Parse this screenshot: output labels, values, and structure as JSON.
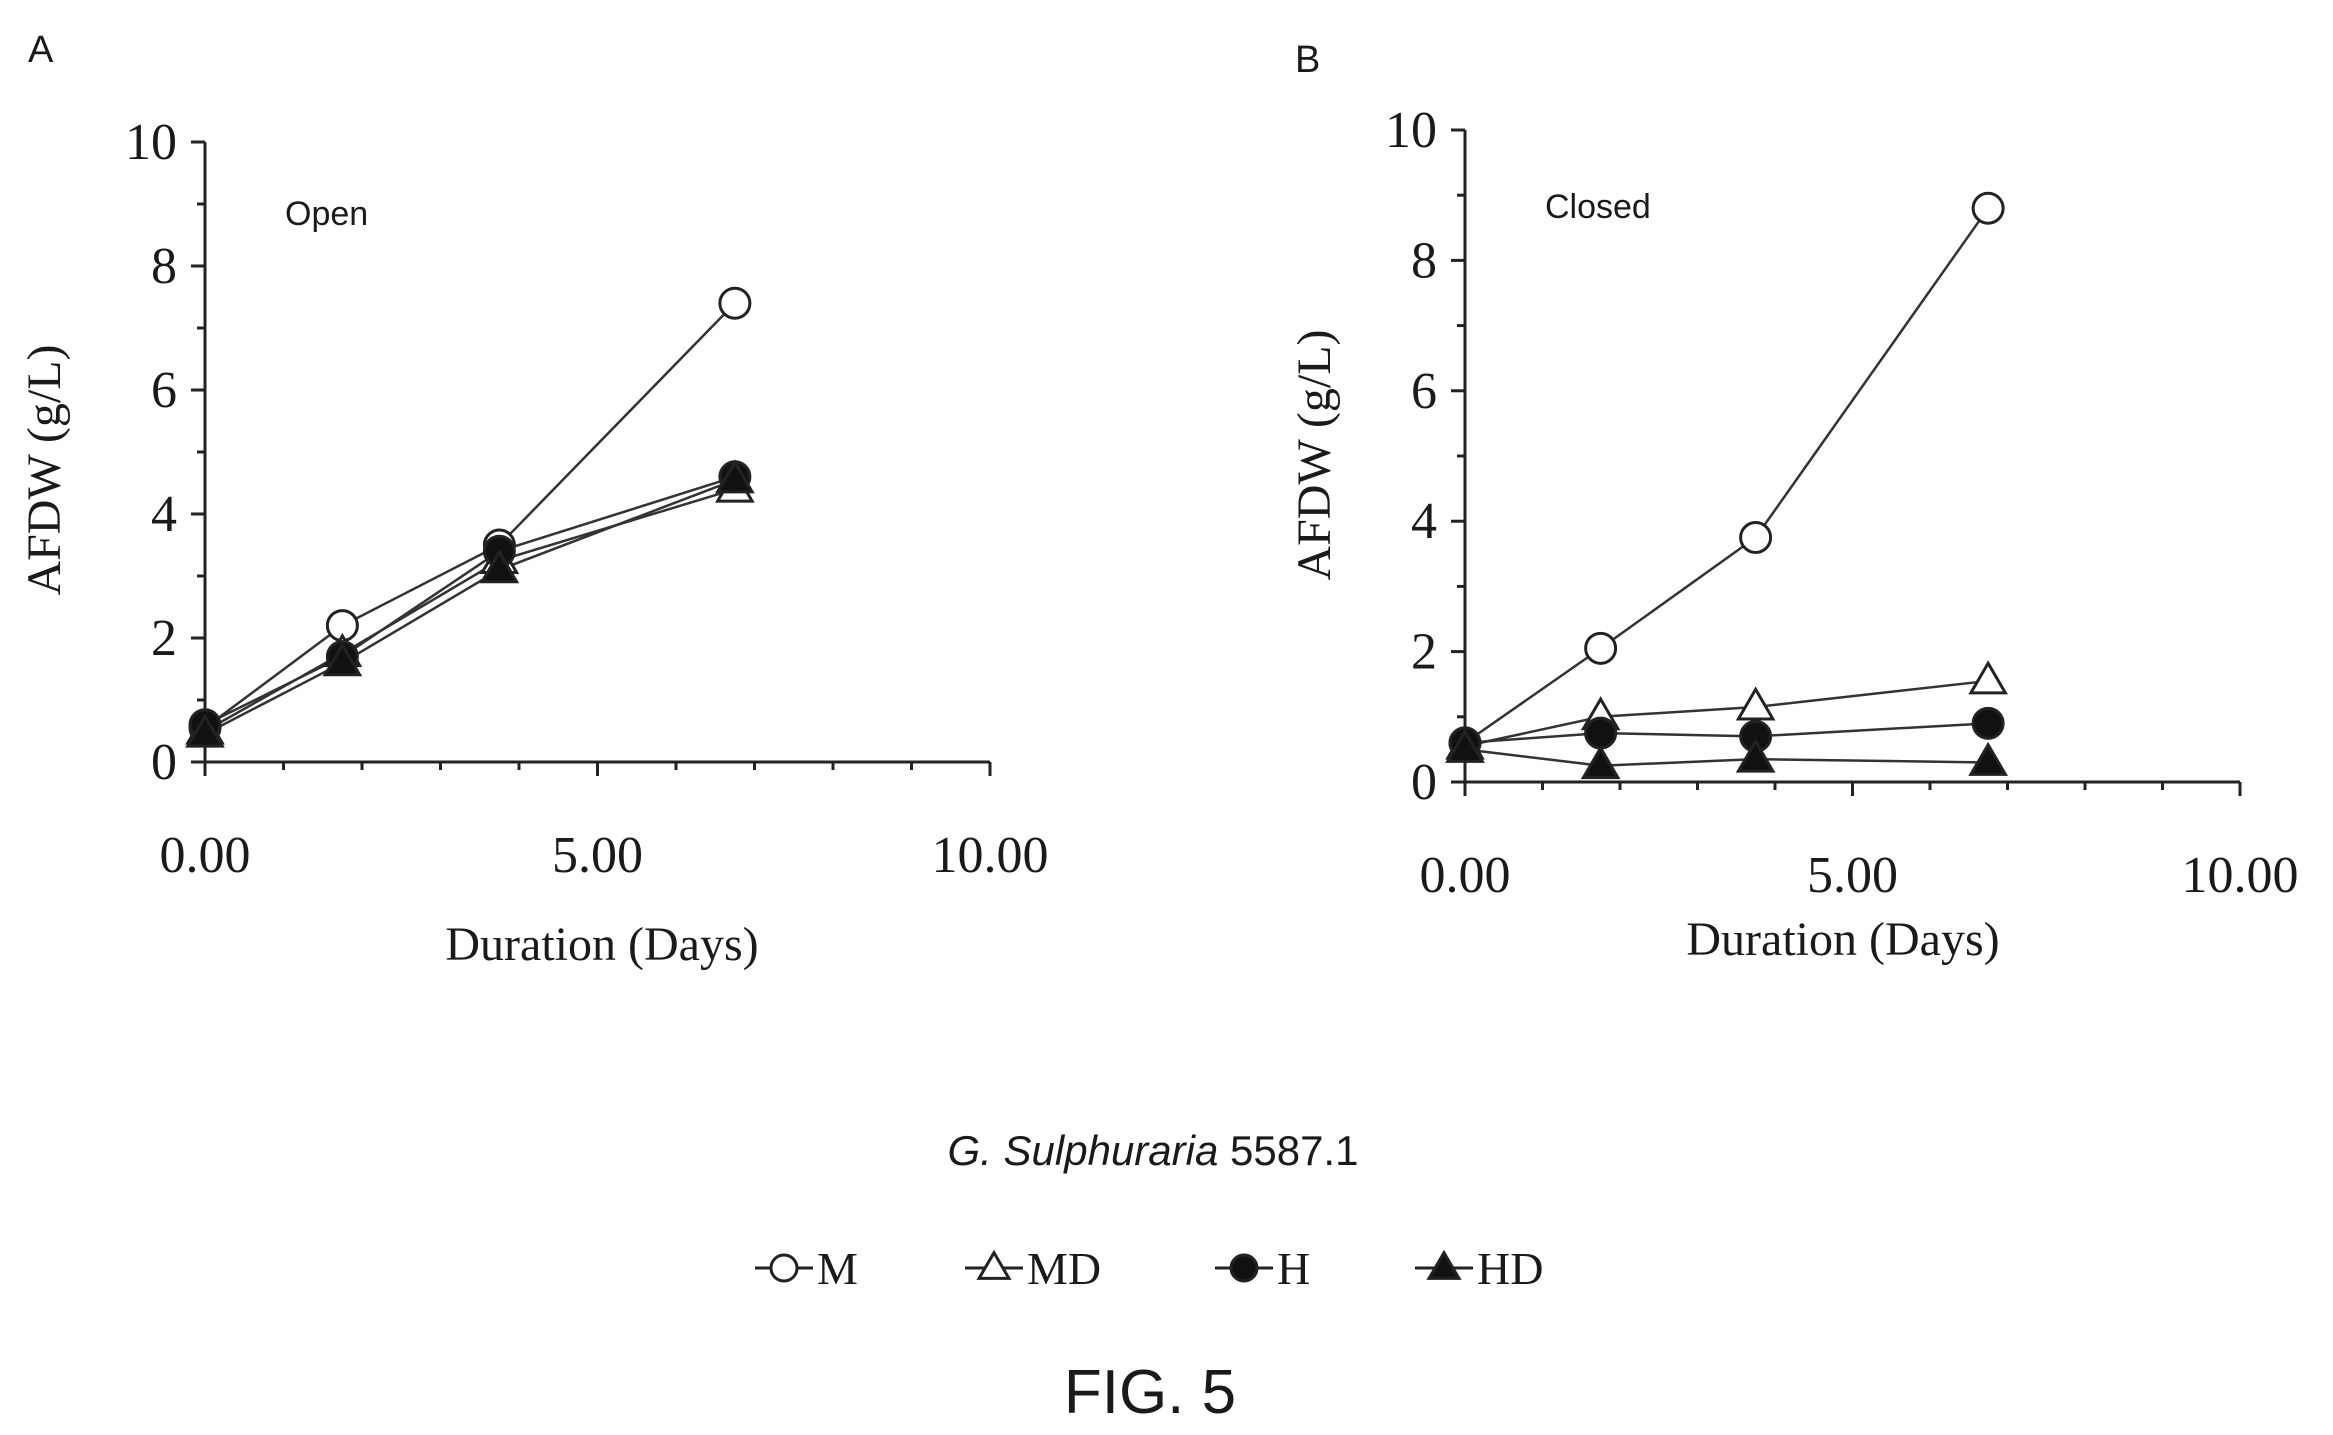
{
  "chart_data": [
    {
      "type": "line",
      "panel_label": "A",
      "annotation": "Open",
      "xlabel": "Duration (Days)",
      "ylabel": "AFDW (g/L)",
      "xlim": [
        0,
        10
      ],
      "ylim": [
        0,
        10
      ],
      "xticks": [
        0,
        5,
        10
      ],
      "xtick_labels": [
        "0.00",
        "5.00",
        "10.00"
      ],
      "yticks": [
        0,
        2,
        4,
        6,
        8,
        10
      ],
      "ytick_labels": [
        "0",
        "2",
        "4",
        "6",
        "8",
        "10"
      ],
      "grid": false,
      "x": [
        0,
        1.75,
        3.75,
        6.75
      ],
      "series": [
        {
          "name": "M",
          "marker": "circle-open",
          "values": [
            0.55,
            2.2,
            3.5,
            7.4
          ]
        },
        {
          "name": "MD",
          "marker": "triangle-open",
          "values": [
            0.5,
            1.75,
            3.25,
            4.4
          ]
        },
        {
          "name": "H",
          "marker": "circle-filled",
          "values": [
            0.6,
            1.7,
            3.4,
            4.6
          ]
        },
        {
          "name": "HD",
          "marker": "triangle-filled",
          "values": [
            0.45,
            1.6,
            3.1,
            4.55
          ]
        }
      ]
    },
    {
      "type": "line",
      "panel_label": "B",
      "annotation": "Closed",
      "xlabel": "Duration (Days)",
      "ylabel": "AFDW (g/L)",
      "xlim": [
        0,
        10
      ],
      "ylim": [
        0,
        10
      ],
      "xticks": [
        0,
        5,
        10
      ],
      "xtick_labels": [
        "0.00",
        "5.00",
        "10.00"
      ],
      "yticks": [
        0,
        2,
        4,
        6,
        8,
        10
      ],
      "ytick_labels": [
        "0",
        "2",
        "4",
        "6",
        "8",
        "10"
      ],
      "grid": false,
      "x": [
        0,
        1.75,
        3.75,
        6.75
      ],
      "series": [
        {
          "name": "M",
          "marker": "circle-open",
          "values": [
            0.6,
            2.05,
            3.75,
            8.8
          ]
        },
        {
          "name": "MD",
          "marker": "triangle-open",
          "values": [
            0.55,
            1.0,
            1.15,
            1.55
          ]
        },
        {
          "name": "H",
          "marker": "circle-filled",
          "values": [
            0.6,
            0.75,
            0.7,
            0.9
          ]
        },
        {
          "name": "HD",
          "marker": "triangle-filled",
          "values": [
            0.5,
            0.25,
            0.35,
            0.3
          ]
        }
      ]
    }
  ],
  "caption": {
    "species_italic": "G. Sulphuraria",
    "strain": " 5587.1"
  },
  "legend": {
    "placement": "bottom-center",
    "items": [
      {
        "label": "M",
        "marker": "circle-open"
      },
      {
        "label": "MD",
        "marker": "triangle-open"
      },
      {
        "label": "H",
        "marker": "circle-filled"
      },
      {
        "label": "HD",
        "marker": "triangle-filled"
      }
    ]
  },
  "figure_label": "FIG. 5"
}
